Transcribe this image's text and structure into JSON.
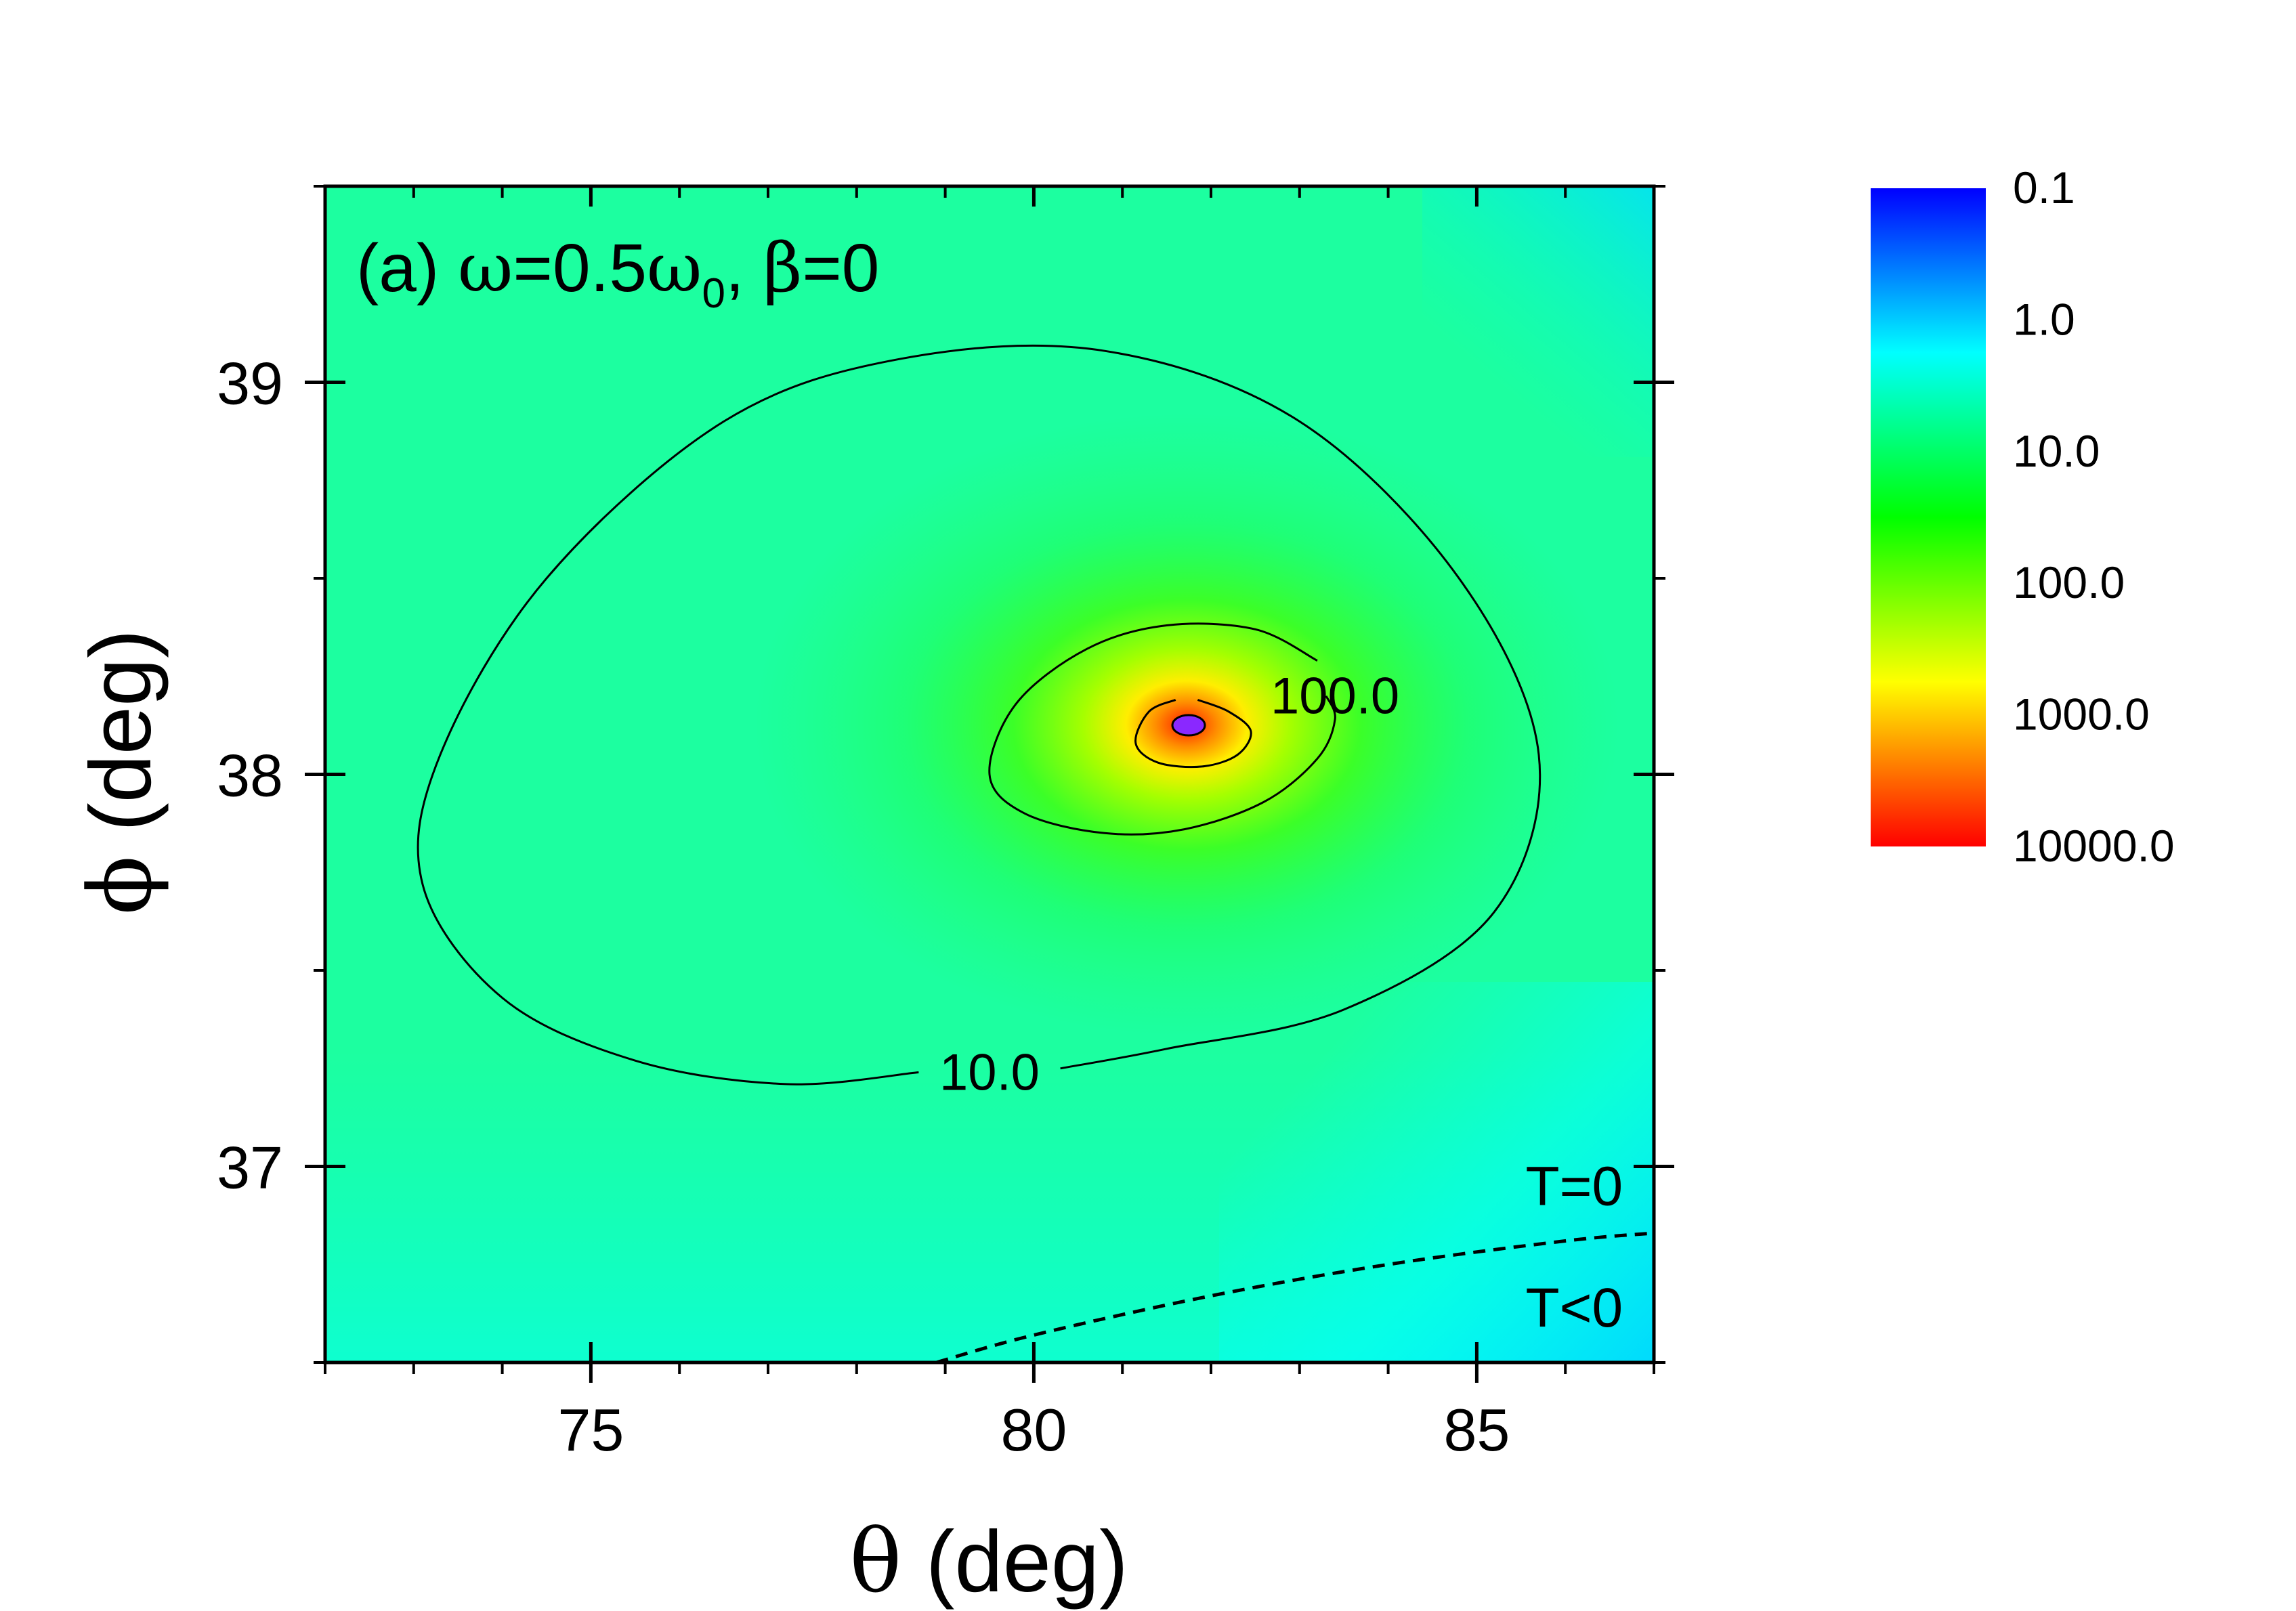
{
  "chart_data": {
    "type": "heatmap",
    "panel_label": {
      "prefix": "(a) ",
      "omega": "ω",
      "eq1": "=0.5",
      "omega0_base": "ω",
      "omega0_sub": "0",
      "sep": ", ",
      "beta": "β",
      "eq2": "=0"
    },
    "xaxis": {
      "symbol": "θ",
      "label": " (deg)",
      "range": [
        72,
        87
      ],
      "major_ticks": [
        75,
        80,
        85
      ],
      "major_tick_labels": [
        "75",
        "80",
        "85"
      ],
      "minor_ticks": [
        72,
        73,
        74,
        76,
        77,
        78,
        79,
        81,
        82,
        83,
        84,
        86,
        87
      ]
    },
    "yaxis": {
      "symbol": "ϕ",
      "label": " (deg)",
      "range": [
        36.5,
        39.5
      ],
      "major_ticks": [
        37,
        38,
        39
      ],
      "major_tick_labels": [
        "37",
        "38",
        "39"
      ],
      "minor_ticks": [
        36.5,
        37.5,
        38.5,
        39.5
      ]
    },
    "colorbar": {
      "scale": "log",
      "range": [
        0.1,
        10000
      ],
      "tick_values": [
        0.1,
        1,
        10,
        100,
        1000,
        10000
      ],
      "tick_labels": [
        "0.1",
        "1.0",
        "10.0",
        "100.0",
        "1000.0",
        "10000.0"
      ],
      "colors": [
        "#0000ff",
        "#00ffff",
        "#00ff00",
        "#ffff00",
        "#ff0000"
      ],
      "placement": "right"
    },
    "peak": {
      "theta": 81.75,
      "phi": 38.12
    },
    "contours": [
      {
        "level": 10,
        "label": "10.0",
        "label_at": {
          "theta": 79.5,
          "phi": 37.24
        },
        "points": [
          [
            78.7,
            37.24
          ],
          [
            77.2,
            37.21
          ],
          [
            75.5,
            37.27
          ],
          [
            74.0,
            37.43
          ],
          [
            73.1,
            37.72
          ],
          [
            73.3,
            38.05
          ],
          [
            74.5,
            38.5
          ],
          [
            76.5,
            38.9
          ],
          [
            78.5,
            39.06
          ],
          [
            80.8,
            39.08
          ],
          [
            83.0,
            38.9
          ],
          [
            84.8,
            38.5
          ],
          [
            85.7,
            38.05
          ],
          [
            85.2,
            37.65
          ],
          [
            83.5,
            37.4
          ],
          [
            81.5,
            37.3
          ],
          [
            80.3,
            37.25
          ]
        ]
      },
      {
        "level": 100,
        "label": "100.0",
        "label_at": {
          "theta": 83.4,
          "phi": 38.2
        },
        "points": [
          [
            83.2,
            38.29
          ],
          [
            82.5,
            38.37
          ],
          [
            81.5,
            38.38
          ],
          [
            80.6,
            38.32
          ],
          [
            79.8,
            38.18
          ],
          [
            79.5,
            38.0
          ],
          [
            79.9,
            37.9
          ],
          [
            80.8,
            37.85
          ],
          [
            81.7,
            37.86
          ],
          [
            82.6,
            37.93
          ],
          [
            83.2,
            38.04
          ],
          [
            83.4,
            38.14
          ],
          [
            83.3,
            38.2
          ]
        ]
      },
      {
        "level": 1000,
        "label": "",
        "points": [
          [
            81.85,
            38.19
          ],
          [
            82.2,
            38.16
          ],
          [
            82.45,
            38.11
          ],
          [
            82.3,
            38.05
          ],
          [
            81.9,
            38.02
          ],
          [
            81.4,
            38.03
          ],
          [
            81.15,
            38.08
          ],
          [
            81.3,
            38.16
          ],
          [
            81.6,
            38.19
          ]
        ]
      }
    ],
    "boundary": {
      "style": "dashed",
      "points": [
        [
          78.9,
          36.5
        ],
        [
          80.0,
          36.57
        ],
        [
          82.0,
          36.67
        ],
        [
          84.0,
          36.75
        ],
        [
          86.0,
          36.81
        ],
        [
          87.0,
          36.83
        ]
      ]
    },
    "region_labels": [
      {
        "text": "T=0",
        "theta": 86.1,
        "phi": 36.95
      },
      {
        "text": "T<0",
        "theta": 86.1,
        "phi": 36.64
      }
    ]
  }
}
